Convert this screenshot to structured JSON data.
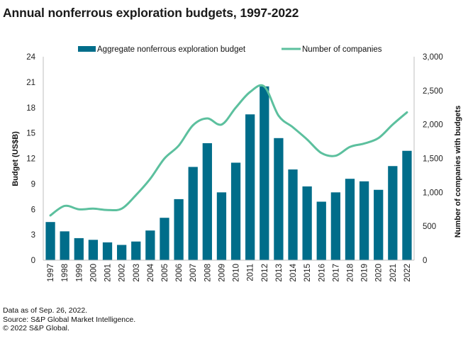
{
  "title": "Annual nonferrous exploration budgets, 1997-2022",
  "footer": {
    "line1": "Data as of Sep. 26, 2022.",
    "line2": "Source: S&P Global Market Intelligence.",
    "line3": "© 2022 S&P Global."
  },
  "colors": {
    "bar": "#006d8a",
    "line": "#5cc09e",
    "axis": "#bfbfbf"
  },
  "chart_data": {
    "type": "bar",
    "title": "Annual nonferrous exploration budgets, 1997-2022",
    "xlabel": "",
    "ylabel": "Budget (US$B)",
    "y2label": "Number of companies with budgets",
    "ylim": [
      0,
      24
    ],
    "y2lim": [
      0,
      3000
    ],
    "yticks": [
      "0",
      "3",
      "6",
      "9",
      "12",
      "15",
      "18",
      "21",
      "24"
    ],
    "y2ticks": [
      "0",
      "500",
      "1,000",
      "1,500",
      "2,000",
      "2,500",
      "3,000"
    ],
    "grid": false,
    "legend_position": "top-center",
    "categories": [
      "1997",
      "1998",
      "1999",
      "2000",
      "2001",
      "2002",
      "2003",
      "2004",
      "2005",
      "2006",
      "2007",
      "2008",
      "2009",
      "2010",
      "2011",
      "2012",
      "2013",
      "2014",
      "2015",
      "2016",
      "2017",
      "2018",
      "2019",
      "2020",
      "2021",
      "2022"
    ],
    "series": [
      {
        "name": "Aggregate nonferrous exploration budget",
        "type": "bar",
        "axis": "left",
        "values": [
          4.5,
          3.4,
          2.6,
          2.4,
          2.1,
          1.8,
          2.2,
          3.5,
          5.0,
          7.2,
          11.0,
          13.8,
          8.0,
          11.5,
          17.2,
          20.5,
          14.4,
          10.7,
          8.7,
          6.9,
          8.0,
          9.6,
          9.3,
          8.3,
          11.1,
          12.9
        ]
      },
      {
        "name": "Number of companies",
        "type": "line",
        "axis": "right",
        "values": [
          660,
          800,
          750,
          760,
          740,
          760,
          960,
          1200,
          1500,
          1690,
          1990,
          2090,
          2000,
          2250,
          2480,
          2560,
          2130,
          1960,
          1780,
          1580,
          1540,
          1670,
          1720,
          1800,
          2000,
          2180
        ]
      }
    ]
  }
}
